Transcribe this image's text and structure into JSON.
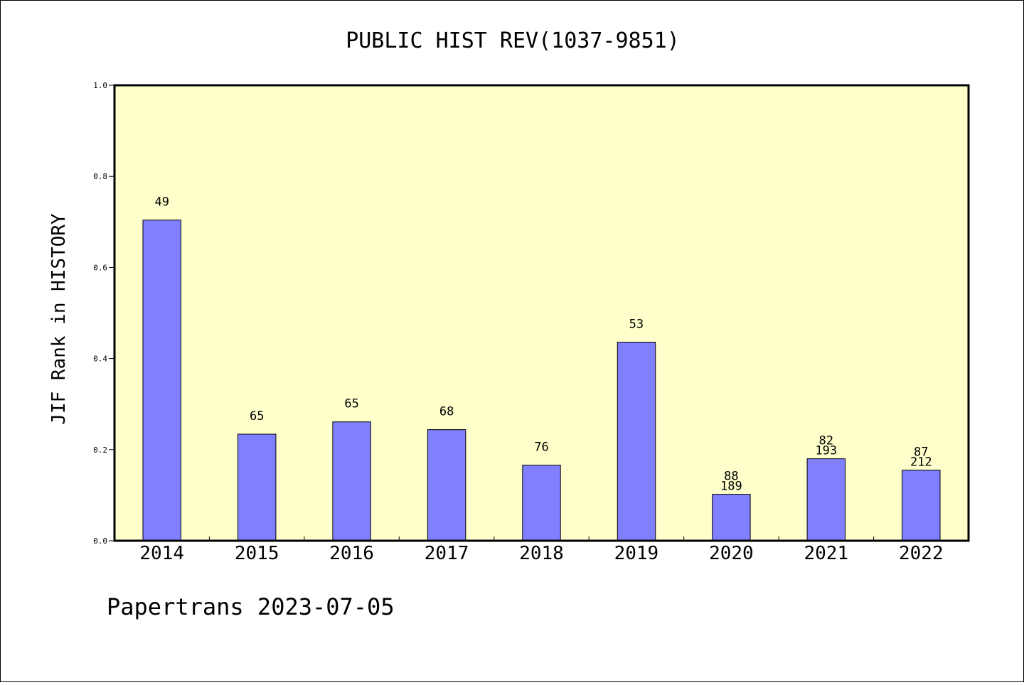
{
  "chart_data": {
    "type": "bar",
    "title": "PUBLIC HIST REV(1037-9851)",
    "xlabel": "",
    "ylabel": "JIF Rank in HISTORY",
    "ylim": [
      0.0,
      1.0
    ],
    "yticks": [
      "0.0",
      "0.2",
      "0.4",
      "0.6",
      "0.8",
      "1.0"
    ],
    "categories": [
      "2014",
      "2015",
      "2016",
      "2017",
      "2018",
      "2019",
      "2020",
      "2021",
      "2022"
    ],
    "values": [
      0.704,
      0.234,
      0.261,
      0.244,
      0.166,
      0.436,
      0.102,
      0.18,
      0.155
    ],
    "rank_labels": [
      "49",
      "65",
      "65",
      "68",
      "76",
      "53",
      "88",
      "82",
      "87"
    ],
    "total_labels": [
      "",
      "",
      "",
      "",
      "",
      "",
      "189",
      "193",
      "212"
    ],
    "grid": false,
    "legend": "none",
    "colors": {
      "plot_background": "#ffffcc",
      "bar_fill": "#8080ff",
      "bar_stroke": "#000000"
    }
  },
  "footer": {
    "text": "Papertrans 2023-07-05"
  }
}
